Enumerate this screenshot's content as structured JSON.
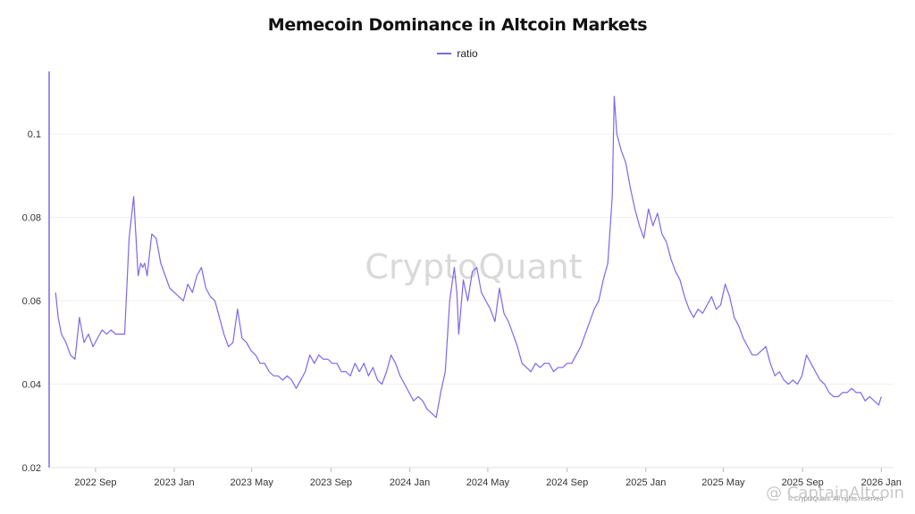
{
  "chart_data": {
    "type": "line",
    "title": "Memecoin Dominance in Altcoin Markets",
    "xlabel": "",
    "ylabel": "",
    "ylim": [
      0.02,
      0.115
    ],
    "yticks": [
      "0.02",
      "0.04",
      "0.06",
      "0.08",
      "0.1"
    ],
    "xticks": [
      "2022 Sep",
      "2023 Jan",
      "2023 May",
      "2023 Sep",
      "2024 Jan",
      "2024 May",
      "2024 Sep",
      "2025 Jan",
      "2025 May",
      "2025 Sep",
      "2026 Jan"
    ],
    "legend_position": "top-center",
    "grid": true,
    "series": [
      {
        "name": "ratio",
        "color": "#7b68ee",
        "x": [
          "2022-07-01",
          "2022-07-05",
          "2022-07-10",
          "2022-07-17",
          "2022-07-24",
          "2022-07-31",
          "2022-08-07",
          "2022-08-14",
          "2022-08-21",
          "2022-08-28",
          "2022-09-04",
          "2022-09-11",
          "2022-09-18",
          "2022-09-25",
          "2022-10-02",
          "2022-10-09",
          "2022-10-16",
          "2022-10-23",
          "2022-10-30",
          "2022-11-06",
          "2022-11-10",
          "2022-11-13",
          "2022-11-16",
          "2022-11-20",
          "2022-11-27",
          "2022-12-04",
          "2022-12-11",
          "2022-12-18",
          "2022-12-25",
          "2023-01-01",
          "2023-01-08",
          "2023-01-15",
          "2023-01-22",
          "2023-01-29",
          "2023-02-05",
          "2023-02-12",
          "2023-02-19",
          "2023-02-26",
          "2023-03-05",
          "2023-03-12",
          "2023-03-19",
          "2023-03-26",
          "2023-04-02",
          "2023-04-09",
          "2023-04-16",
          "2023-04-23",
          "2023-04-30",
          "2023-05-07",
          "2023-05-14",
          "2023-05-21",
          "2023-05-28",
          "2023-06-04",
          "2023-06-11",
          "2023-06-18",
          "2023-06-25",
          "2023-07-02",
          "2023-07-09",
          "2023-07-16",
          "2023-07-23",
          "2023-07-30",
          "2023-08-06",
          "2023-08-13",
          "2023-08-20",
          "2023-08-27",
          "2023-09-03",
          "2023-09-10",
          "2023-09-17",
          "2023-09-24",
          "2023-10-01",
          "2023-10-08",
          "2023-10-15",
          "2023-10-22",
          "2023-10-29",
          "2023-11-05",
          "2023-11-12",
          "2023-11-19",
          "2023-11-26",
          "2023-12-03",
          "2023-12-10",
          "2023-12-17",
          "2023-12-24",
          "2023-12-31",
          "2024-01-07",
          "2024-01-14",
          "2024-01-21",
          "2024-01-28",
          "2024-02-04",
          "2024-02-11",
          "2024-02-18",
          "2024-02-25",
          "2024-03-03",
          "2024-03-10",
          "2024-03-14",
          "2024-03-17",
          "2024-03-24",
          "2024-03-31",
          "2024-04-07",
          "2024-04-14",
          "2024-04-21",
          "2024-04-28",
          "2024-05-05",
          "2024-05-12",
          "2024-05-19",
          "2024-05-26",
          "2024-06-02",
          "2024-06-09",
          "2024-06-16",
          "2024-06-23",
          "2024-06-30",
          "2024-07-07",
          "2024-07-14",
          "2024-07-21",
          "2024-07-28",
          "2024-08-04",
          "2024-08-11",
          "2024-08-18",
          "2024-08-25",
          "2024-09-01",
          "2024-09-08",
          "2024-09-15",
          "2024-09-22",
          "2024-09-29",
          "2024-10-06",
          "2024-10-13",
          "2024-10-20",
          "2024-10-27",
          "2024-11-03",
          "2024-11-10",
          "2024-11-13",
          "2024-11-17",
          "2024-11-24",
          "2024-12-01",
          "2024-12-08",
          "2024-12-15",
          "2024-12-22",
          "2024-12-29",
          "2025-01-05",
          "2025-01-12",
          "2025-01-19",
          "2025-01-26",
          "2025-02-02",
          "2025-02-09",
          "2025-02-16",
          "2025-02-23",
          "2025-03-02",
          "2025-03-09",
          "2025-03-16",
          "2025-03-23",
          "2025-03-30",
          "2025-04-06",
          "2025-04-13",
          "2025-04-20",
          "2025-04-27",
          "2025-05-04",
          "2025-05-11",
          "2025-05-18",
          "2025-05-25",
          "2025-06-01",
          "2025-06-08",
          "2025-06-15",
          "2025-06-22",
          "2025-06-29",
          "2025-07-06",
          "2025-07-13",
          "2025-07-20",
          "2025-07-27",
          "2025-08-03",
          "2025-08-10",
          "2025-08-17",
          "2025-08-24",
          "2025-08-31",
          "2025-09-07",
          "2025-09-14",
          "2025-09-21",
          "2025-09-28",
          "2025-10-05",
          "2025-10-12",
          "2025-10-19",
          "2025-10-26",
          "2025-11-02",
          "2025-11-09",
          "2025-11-16",
          "2025-11-23",
          "2025-11-30",
          "2025-12-07",
          "2025-12-14",
          "2025-12-21",
          "2025-12-28",
          "2026-01-01"
        ],
        "values": [
          0.062,
          0.056,
          0.052,
          0.05,
          0.047,
          0.046,
          0.056,
          0.05,
          0.052,
          0.049,
          0.051,
          0.053,
          0.052,
          0.053,
          0.052,
          0.052,
          0.052,
          0.075,
          0.085,
          0.066,
          0.069,
          0.068,
          0.069,
          0.066,
          0.076,
          0.075,
          0.069,
          0.066,
          0.063,
          0.062,
          0.061,
          0.06,
          0.064,
          0.062,
          0.066,
          0.068,
          0.063,
          0.061,
          0.06,
          0.056,
          0.052,
          0.049,
          0.05,
          0.058,
          0.051,
          0.05,
          0.048,
          0.047,
          0.045,
          0.045,
          0.043,
          0.042,
          0.042,
          0.041,
          0.042,
          0.041,
          0.039,
          0.041,
          0.043,
          0.047,
          0.045,
          0.047,
          0.046,
          0.046,
          0.045,
          0.045,
          0.043,
          0.043,
          0.042,
          0.045,
          0.043,
          0.045,
          0.042,
          0.044,
          0.041,
          0.04,
          0.043,
          0.047,
          0.045,
          0.042,
          0.04,
          0.038,
          0.036,
          0.037,
          0.036,
          0.034,
          0.033,
          0.032,
          0.038,
          0.043,
          0.06,
          0.068,
          0.062,
          0.052,
          0.065,
          0.06,
          0.067,
          0.068,
          0.062,
          0.06,
          0.058,
          0.055,
          0.063,
          0.057,
          0.055,
          0.052,
          0.049,
          0.045,
          0.044,
          0.043,
          0.045,
          0.044,
          0.045,
          0.045,
          0.043,
          0.044,
          0.044,
          0.045,
          0.045,
          0.047,
          0.049,
          0.052,
          0.055,
          0.058,
          0.06,
          0.065,
          0.069,
          0.085,
          0.109,
          0.1,
          0.096,
          0.093,
          0.087,
          0.082,
          0.078,
          0.075,
          0.082,
          0.078,
          0.081,
          0.076,
          0.074,
          0.07,
          0.067,
          0.065,
          0.061,
          0.058,
          0.056,
          0.058,
          0.057,
          0.059,
          0.061,
          0.058,
          0.059,
          0.064,
          0.061,
          0.056,
          0.054,
          0.051,
          0.049,
          0.047,
          0.047,
          0.048,
          0.049,
          0.045,
          0.042,
          0.043,
          0.041,
          0.04,
          0.041,
          0.04,
          0.042,
          0.047,
          0.045,
          0.043,
          0.041,
          0.04,
          0.038,
          0.037,
          0.037,
          0.038,
          0.038,
          0.039,
          0.038,
          0.038,
          0.036,
          0.037,
          0.036,
          0.035,
          0.037
        ]
      }
    ]
  },
  "watermark": "CryptoQuant",
  "corner_mark": "@ CaptainAltcoin",
  "copyright": "© CryptoQuant. All rights reserved"
}
